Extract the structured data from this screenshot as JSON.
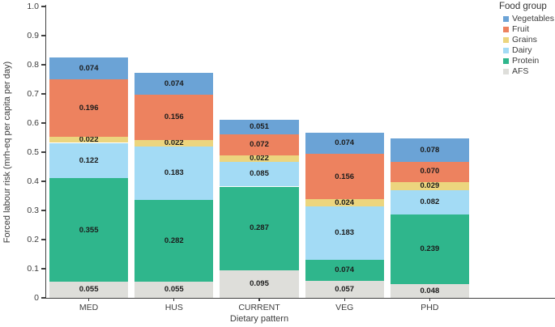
{
  "chart_data": {
    "type": "bar",
    "stacked": true,
    "title": "",
    "xlabel": "Dietary pattern",
    "ylabel": "Forced labour risk (mrh-eq per capita per day)",
    "ylim": [
      0,
      1.0
    ],
    "ytick_values": [
      0,
      0.1,
      0.2,
      0.3,
      0.4,
      0.5,
      0.6,
      0.7,
      0.8,
      0.9,
      1.0
    ],
    "ytick_labels": [
      "0",
      "0.1",
      "0.2",
      "0.3",
      "0.4",
      "0.5",
      "0.6",
      "0.7",
      "0.8",
      "0.9",
      "1.0"
    ],
    "grid": false,
    "categories": [
      "MED",
      "HUS",
      "CURRENT",
      "VEG",
      "PHD"
    ],
    "series": [
      {
        "name": "AFS",
        "color": "#dededa",
        "values": [
          0.055,
          0.055,
          0.095,
          0.057,
          0.048
        ]
      },
      {
        "name": "Protein",
        "color": "#2fb68c",
        "values": [
          0.355,
          0.282,
          0.287,
          0.074,
          0.239
        ]
      },
      {
        "name": "Dairy",
        "color": "#a3dbf5",
        "values": [
          0.122,
          0.183,
          0.085,
          0.183,
          0.082
        ]
      },
      {
        "name": "Grains",
        "color": "#ecd57e",
        "values": [
          0.022,
          0.022,
          0.022,
          0.024,
          0.029
        ]
      },
      {
        "name": "Fruit",
        "color": "#ed825f",
        "values": [
          0.196,
          0.156,
          0.072,
          0.156,
          0.07
        ]
      },
      {
        "name": "Vegetables",
        "color": "#6ba3d6",
        "values": [
          0.074,
          0.074,
          0.051,
          0.074,
          0.078
        ]
      }
    ],
    "bar_totals": [
      0.824,
      0.772,
      0.612,
      0.568,
      0.546
    ],
    "value_label_decimals": 3,
    "legend": {
      "title": "Food group",
      "position": "top-right",
      "entries": [
        "Vegetables",
        "Fruit",
        "Grains",
        "Dairy",
        "Protein",
        "AFS"
      ]
    }
  }
}
